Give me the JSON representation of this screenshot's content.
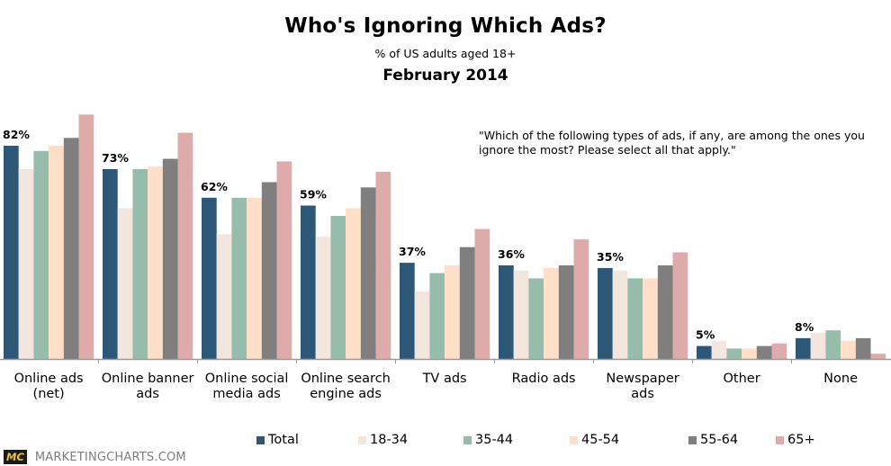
{
  "chart_data": {
    "type": "bar",
    "title": "Who's Ignoring Which Ads?",
    "subtitle": "% of US adults aged 18+",
    "date": "February 2014",
    "note": "\"Which of the following types of ads, if any, are among the ones you ignore the most? Please select all that apply.\"",
    "xlabel": "",
    "ylabel": "",
    "ylim": [
      0,
      100
    ],
    "grid": false,
    "legend_position": "bottom",
    "categories": [
      [
        "Online ads",
        "(net)"
      ],
      [
        "Online banner",
        "ads"
      ],
      [
        "Online social",
        "media ads"
      ],
      [
        "Online search",
        "engine ads"
      ],
      [
        "TV ads"
      ],
      [
        "Radio ads"
      ],
      [
        "Newspaper",
        "ads"
      ],
      [
        "Other"
      ],
      [
        "None"
      ]
    ],
    "series": [
      {
        "name": "Total",
        "color": "#2C5777",
        "values": [
          82,
          73,
          62,
          59,
          37,
          36,
          35,
          5,
          8
        ]
      },
      {
        "name": "18-34",
        "color": "#F3E6DC",
        "values": [
          73,
          58,
          48,
          47,
          26,
          34,
          34,
          7,
          10
        ]
      },
      {
        "name": "35-44",
        "color": "#96BDAC",
        "values": [
          80,
          73,
          62,
          55,
          33,
          31,
          31,
          4,
          11
        ]
      },
      {
        "name": "45-54",
        "color": "#FFDFC7",
        "values": [
          82,
          74,
          62,
          58,
          36,
          35,
          31,
          4,
          7
        ]
      },
      {
        "name": "55-64",
        "color": "#7F7F7F",
        "values": [
          85,
          77,
          68,
          66,
          43,
          36,
          36,
          5,
          8
        ]
      },
      {
        "name": "65+",
        "color": "#DEAAAA",
        "values": [
          94,
          87,
          76,
          72,
          50,
          46,
          41,
          6,
          2
        ]
      }
    ],
    "data_labels": [
      "82%",
      "73%",
      "62%",
      "59%",
      "37%",
      "36%",
      "35%",
      "5%",
      "8%"
    ]
  },
  "footer": {
    "logo_text": "MC",
    "site": "MARKETINGCHARTS.COM"
  },
  "colors": {
    "axis": "#999999",
    "logo_bg": "#1a1a1a",
    "logo_fg": "#f2c318"
  }
}
